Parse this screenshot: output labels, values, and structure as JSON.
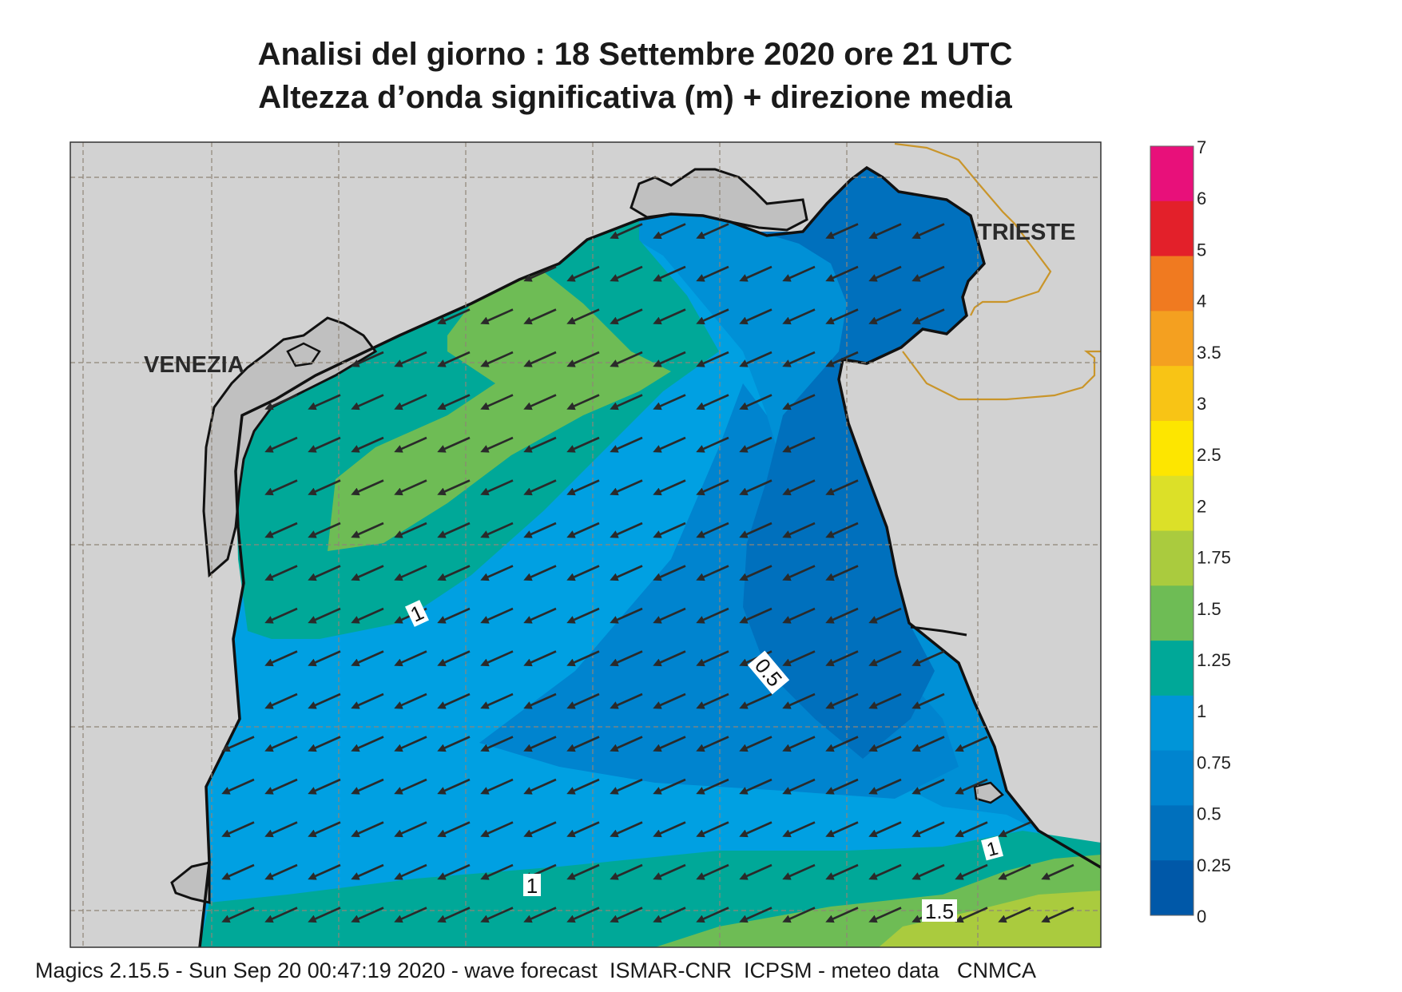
{
  "title": {
    "line1": "Analisi del giorno :  18 Settembre 2020   ore 21 UTC",
    "line2": "Altezza d’onda significativa (m) + direzione media"
  },
  "map": {
    "cities": [
      "VENEZIA",
      "TRIESTE"
    ],
    "contour_labels": [
      "1",
      "0.5",
      "1",
      "1",
      "1.5"
    ],
    "arrow_direction": "toward-west-southwest"
  },
  "legend": {
    "ticks": [
      "7",
      "6",
      "5",
      "4",
      "3.5",
      "3",
      "2.5",
      "2",
      "1.75",
      "1.5",
      "1.25",
      "1",
      "0.75",
      "0.5",
      "0.25",
      "0"
    ],
    "colors": [
      "#e8107a",
      "#e3202a",
      "#f07a20",
      "#f4a020",
      "#f8c415",
      "#fde600",
      "#dce028",
      "#aacb3e",
      "#6ebc55",
      "#00a898",
      "#0095d8",
      "#0084cf",
      "#0070bd",
      "#0058a8"
    ]
  },
  "colors": {
    "land": "#d2d2d2",
    "lagoon": "#c0c0c0",
    "coast": "#111111",
    "border": "#c9952a",
    "grid": "#8f8577",
    "arrow": "#2a2a2a"
  },
  "footer": "Magics 2.15.5 - Sun Sep 20 00:47:19 2020 - wave forecast  ISMAR-CNR  ICPSM - meteo data   CNMCA"
}
